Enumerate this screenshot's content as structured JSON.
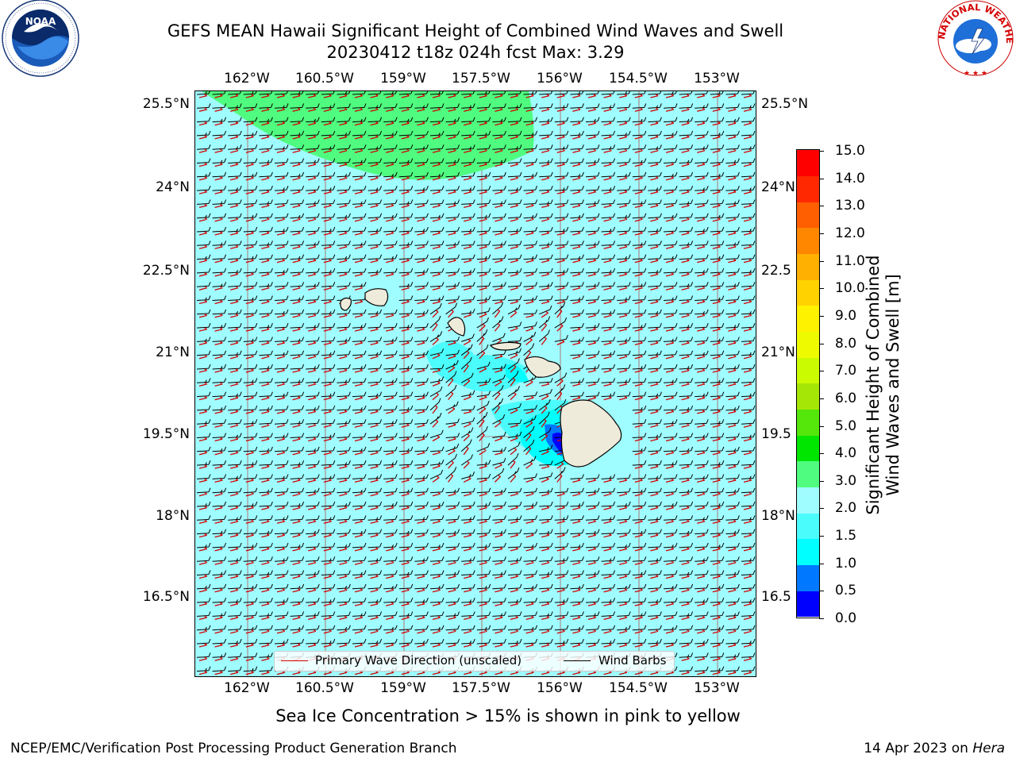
{
  "title": {
    "line1": "GEFS MEAN Hawaii Significant Height of Combined Wind Waves and Swell",
    "line2": "20230412 t18z 024h fcst   Max: 3.29"
  },
  "logos": {
    "left": {
      "name": "NOAA",
      "ring_text": "NATIONAL OCEANIC AND ATMOSPHERIC ADMINISTRATION · U.S. DEPARTMENT OF COMMERCE"
    },
    "right": {
      "name": "National Weather Service",
      "ring_text": "NATIONAL WEATHER SERVICE"
    }
  },
  "axes": {
    "lon_ticks": [
      "162°W",
      "160.5°W",
      "159°W",
      "157.5°W",
      "156°W",
      "154.5°W",
      "153°W"
    ],
    "lat_ticks": [
      "25.5°N",
      "24°N",
      "22.5°N",
      "21°N",
      "19.5°N",
      "18°N",
      "16.5°N"
    ],
    "lat_ticks_right_clipped": [
      "25.5°N",
      "24°N",
      "22.5",
      "21°N",
      "19.5",
      "18°N",
      "16.5"
    ]
  },
  "map": {
    "background_color": "#9ffcff",
    "land_color": "#efebdb",
    "features": [
      "swh-contours",
      "wind-barbs",
      "primary-wave-direction-arrows",
      "hawaiian-islands",
      "lat-lon-grid"
    ]
  },
  "legend": {
    "primary_wave": "Primary Wave Direction (unscaled)",
    "wind_barbs": "Wind Barbs",
    "primary_wave_color": "#d40000",
    "wind_barbs_color": "#000000"
  },
  "colorbar": {
    "title_line1": "Significant Height of Combined",
    "title_line2": "Wind Waves and Swell [m]",
    "tick_labels": [
      "15.0",
      "14.0",
      "13.0",
      "12.0",
      "11.0",
      "10.0",
      "9.0",
      "8.0",
      "7.0",
      "6.0",
      "5.0",
      "4.0",
      "3.0",
      "2.0",
      "1.5",
      "1.0",
      "0.5",
      "0.0"
    ],
    "levels": [
      0.0,
      0.5,
      1.0,
      1.5,
      2.0,
      3.0,
      4.0,
      5.0,
      6.0,
      7.0,
      8.0,
      9.0,
      10.0,
      11.0,
      12.0,
      13.0,
      14.0,
      15.0
    ],
    "colors": [
      "#0000ff",
      "#0078ff",
      "#00ffff",
      "#4bfcfc",
      "#9ffcff",
      "#4ffc7f",
      "#00e600",
      "#55e60c",
      "#a5e607",
      "#cbfb00",
      "#eefb00",
      "#fff200",
      "#ffd200",
      "#ffb000",
      "#ff8700",
      "#ff5f00",
      "#ff2800",
      "#ff0000"
    ]
  },
  "note": "Sea Ice Concentration > 15% is shown in pink to yellow",
  "footer": {
    "left": "NCEP/EMC/Verification Post Processing Product Generation Branch",
    "right_prefix": "14 Apr 2023 on ",
    "right_host": "Hera"
  }
}
